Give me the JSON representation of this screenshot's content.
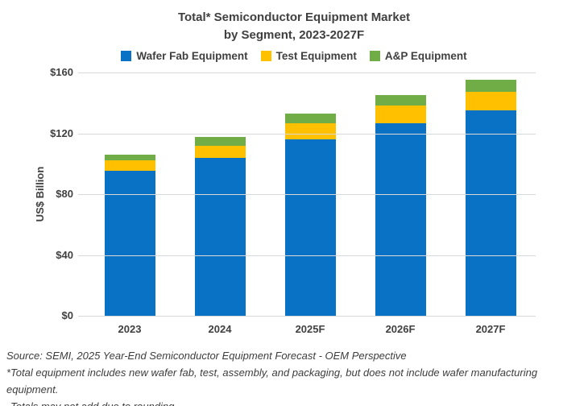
{
  "title": {
    "line1": "Total* Semiconductor Equipment Market",
    "line2": "by Segment, 2023-2027F"
  },
  "chart_data": {
    "type": "bar",
    "stacked": true,
    "title": "Total* Semiconductor Equipment Market by Segment, 2023-2027F",
    "categories": [
      "2023",
      "2024",
      "2025F",
      "2026F",
      "2027F"
    ],
    "series": [
      {
        "name": "Wafer Fab Equipment",
        "color": "#0a72c4",
        "values": [
          95.5,
          104,
          116,
          126.5,
          135
        ]
      },
      {
        "name": "Test Equipment",
        "color": "#ffc000",
        "values": [
          6.5,
          8,
          10.5,
          12,
          12.5
        ]
      },
      {
        "name": "A&P Equipment",
        "color": "#70ad47",
        "values": [
          4,
          5.5,
          6.5,
          6.5,
          8
        ]
      }
    ],
    "totals_approx": [
      106,
      117.5,
      133,
      145,
      155.5
    ],
    "xlabel": "",
    "ylabel": "US$ Billion",
    "ylim": [
      0,
      160
    ],
    "ytick_labels": [
      "$160",
      "$120",
      "$80",
      "$40",
      "$0"
    ],
    "grid": "horizontal",
    "legend_position": "top",
    "unit": "US$ Billion"
  },
  "colors": {
    "text": "#404040",
    "gridline": "#d9d9d9",
    "background": "#ffffff"
  },
  "footer": {
    "line1": "Source: SEMI, 2025 Year-End Semiconductor Equipment Forecast - OEM Perspective",
    "line2": "*Total equipment includes new wafer fab, test, assembly, and packaging, but does not include wafer manufacturing equipment.",
    "line3": "Totals may not add due to rounding."
  }
}
